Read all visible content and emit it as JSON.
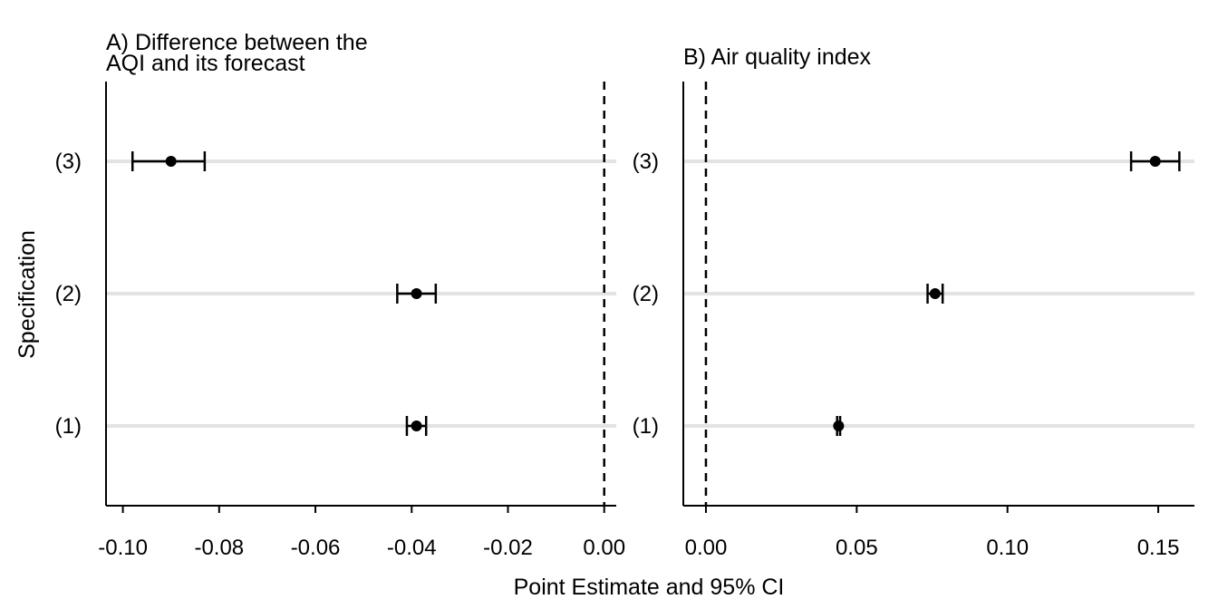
{
  "chart_data": [
    {
      "type": "scatter",
      "panel": "A",
      "title": "A) Difference between the AQI and its forecast",
      "title_lines": [
        "A) Difference between the",
        "AQI and its forecast"
      ],
      "categories": [
        "(1)",
        "(2)",
        "(3)"
      ],
      "estimate": [
        -0.039,
        -0.039,
        -0.09
      ],
      "ci_low": [
        -0.041,
        -0.043,
        -0.098
      ],
      "ci_high": [
        -0.037,
        -0.035,
        -0.083
      ],
      "xlim": [
        -0.1035,
        0.0025
      ],
      "xticks": [
        -0.1,
        -0.08,
        -0.06,
        -0.04,
        -0.02,
        0.0
      ],
      "xtick_labels": [
        "-0.10",
        "-0.08",
        "-0.06",
        "-0.04",
        "-0.02",
        "0.00"
      ],
      "reference_line": 0,
      "grid": "horizontal"
    },
    {
      "type": "scatter",
      "panel": "B",
      "title": "B) Air quality index",
      "title_lines": [
        "B) Air quality index"
      ],
      "categories": [
        "(1)",
        "(2)",
        "(3)"
      ],
      "estimate": [
        0.044,
        0.076,
        0.149
      ],
      "ci_low": [
        0.0435,
        0.0735,
        0.141
      ],
      "ci_high": [
        0.0445,
        0.0785,
        0.157
      ],
      "xlim": [
        -0.0075,
        0.162
      ],
      "xticks": [
        0.0,
        0.05,
        0.1,
        0.15
      ],
      "xtick_labels": [
        "0.00",
        "0.05",
        "0.10",
        "0.15"
      ],
      "reference_line": 0,
      "grid": "horizontal"
    }
  ],
  "shared": {
    "ylabel": "Specification",
    "xlabel": "Point Estimate and 95% CI"
  }
}
